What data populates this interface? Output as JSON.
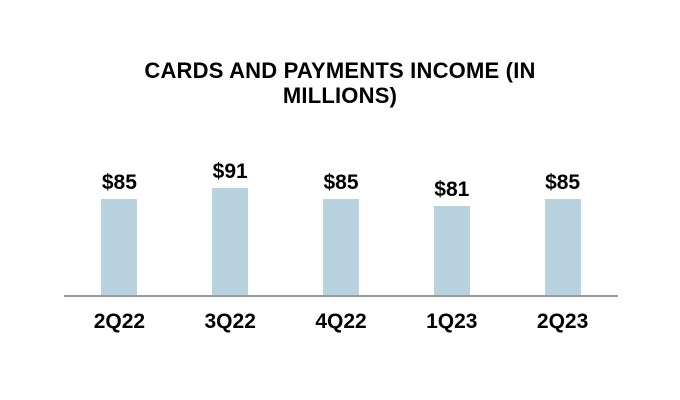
{
  "chart": {
    "background_color": "#ffffff",
    "bar_color": "#b8d2e0",
    "axis_line_color": "#9a9a9a",
    "text_color": "#000000"
  },
  "chart_data": {
    "type": "bar",
    "title": "CARDS AND PAYMENTS INCOME (IN MILLIONS)",
    "categories": [
      "2Q22",
      "3Q22",
      "4Q22",
      "1Q23",
      "2Q23"
    ],
    "values": [
      85,
      91,
      85,
      81,
      85
    ],
    "data_labels": [
      "$85",
      "$91",
      "$85",
      "$81",
      "$85"
    ],
    "xlabel": "",
    "ylabel": "",
    "legend_position": "none",
    "grid": false,
    "y_axis_visible": false,
    "x_axis_line_visible": true
  }
}
